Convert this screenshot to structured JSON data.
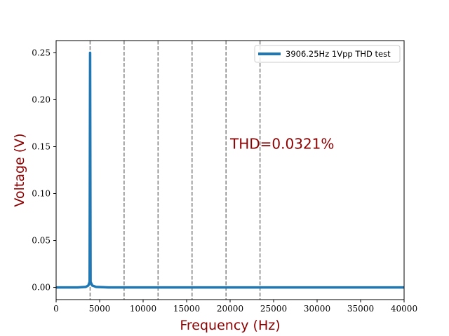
{
  "chart_data": {
    "type": "line",
    "title": "",
    "xlabel": "Frequency (Hz)",
    "ylabel": "Voltage (V)",
    "xlim": [
      0,
      40000
    ],
    "ylim": [
      -0.013,
      0.263
    ],
    "xticks": [
      0,
      5000,
      10000,
      15000,
      20000,
      25000,
      30000,
      35000,
      40000
    ],
    "xtick_labels": [
      "0",
      "5000",
      "10000",
      "15000",
      "20000",
      "25000",
      "30000",
      "35000",
      "40000"
    ],
    "yticks": [
      0.0,
      0.05,
      0.1,
      0.15,
      0.2,
      0.25
    ],
    "ytick_labels": [
      "0.00",
      "0.05",
      "0.10",
      "0.15",
      "0.20",
      "0.25"
    ],
    "grid": false,
    "legend_position": "top-right",
    "series": [
      {
        "name": "3906.25Hz 1Vpp THD test",
        "color": "#1f77b4",
        "points": [
          [
            0,
            0.0
          ],
          [
            2500,
            0.0
          ],
          [
            3400,
            0.0005
          ],
          [
            3700,
            0.002
          ],
          [
            3850,
            0.006
          ],
          [
            3906.25,
            0.25
          ],
          [
            3960,
            0.006
          ],
          [
            4150,
            0.002
          ],
          [
            4600,
            0.0005
          ],
          [
            6000,
            0.0
          ],
          [
            40000,
            0.0
          ]
        ]
      }
    ],
    "harmonic_lines": {
      "color": "#808080",
      "style": "dashed",
      "x": [
        3906.25,
        7812.5,
        11718.75,
        15625,
        19531.25,
        23437.5
      ]
    },
    "annotation": {
      "text": "THD=0.0321%",
      "x": 20000,
      "y": 0.153,
      "color": "#8b0000"
    }
  }
}
